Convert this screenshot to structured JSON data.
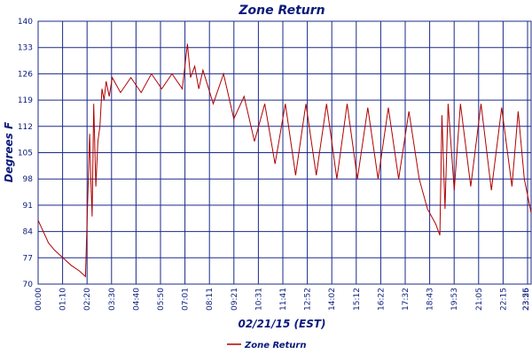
{
  "chart_data": {
    "type": "line",
    "title": "Zone Return",
    "xlabel": "02/21/15 (EST)",
    "ylabel": "Degrees F",
    "ylim": [
      70,
      140
    ],
    "yticks": [
      70,
      77,
      84,
      91,
      98,
      105,
      112,
      119,
      126,
      133,
      140
    ],
    "xticks": [
      "00:00",
      "01:10",
      "02:20",
      "03:30",
      "04:40",
      "05:50",
      "07:01",
      "08:11",
      "09:21",
      "10:31",
      "11:41",
      "12:52",
      "14:02",
      "15:12",
      "16:22",
      "17:32",
      "18:43",
      "19:53",
      "21:05",
      "22:15",
      "23:25",
      "23:56"
    ],
    "grid": true,
    "legend": "bottom-left",
    "line_color": "#b00000",
    "series": [
      {
        "name": "Zone Return",
        "x_hours": [
          0,
          0.25,
          0.5,
          0.8,
          1.2,
          1.6,
          2.0,
          2.3,
          2.5,
          2.55,
          2.62,
          2.7,
          2.8,
          2.9,
          3.0,
          3.1,
          3.2,
          3.3,
          3.45,
          3.6,
          4.0,
          4.5,
          5.0,
          5.5,
          6.0,
          6.5,
          7.0,
          7.25,
          7.4,
          7.6,
          7.8,
          8.0,
          8.5,
          9.0,
          9.5,
          10.0,
          10.5,
          11.0,
          11.5,
          12.0,
          12.5,
          13.0,
          13.5,
          14.0,
          14.5,
          15.0,
          15.5,
          16.0,
          16.5,
          17.0,
          17.5,
          18.0,
          18.5,
          18.9,
          19.3,
          19.5,
          19.6,
          19.75,
          19.9,
          20.2,
          20.5,
          21.0,
          21.5,
          22.0,
          22.5,
          23.0,
          23.3,
          23.6,
          23.93
        ],
        "values": [
          87,
          84,
          81,
          79,
          77,
          75,
          73.5,
          72,
          110,
          100,
          88,
          118,
          96,
          108,
          112,
          122,
          119,
          124,
          120,
          125,
          121,
          125,
          121,
          126,
          122,
          126,
          122,
          134,
          125,
          128,
          122,
          127,
          118,
          126,
          114,
          120,
          108,
          118,
          102,
          118,
          99,
          118,
          99,
          118,
          98,
          118,
          98,
          117,
          98,
          117,
          98,
          116,
          98,
          90,
          86,
          83,
          115,
          90,
          118,
          95,
          118,
          96,
          118,
          95,
          117,
          96,
          116,
          98,
          89
        ]
      }
    ]
  }
}
